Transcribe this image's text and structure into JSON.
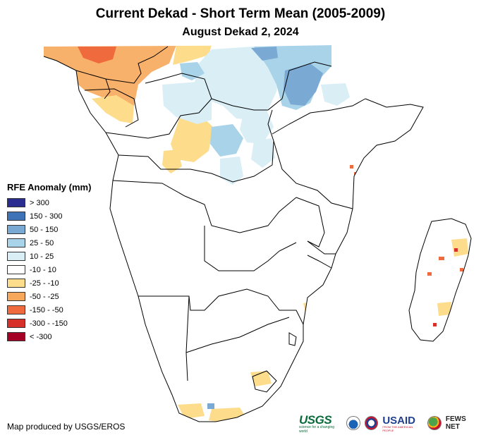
{
  "title": "Current Dekad - Short Term Mean (2005-2009)",
  "subtitle": "August Dekad 2, 2024",
  "legend": {
    "title": "RFE Anomaly (mm)",
    "items": [
      {
        "label": "> 300",
        "color": "#2b2c8f"
      },
      {
        "label": "150 - 300",
        "color": "#3f73b8"
      },
      {
        "label": "50 - 150",
        "color": "#7aa9d4"
      },
      {
        "label": "25 - 50",
        "color": "#a9d3e8"
      },
      {
        "label": "10 - 25",
        "color": "#daeef6"
      },
      {
        "label": "-10 - 10",
        "color": "#ffffff"
      },
      {
        "label": "-25 - -10",
        "color": "#fddc8c"
      },
      {
        "label": "-50 - -25",
        "color": "#f7a85b"
      },
      {
        "label": "-150 - -50",
        "color": "#ef6a3c"
      },
      {
        "label": "-300 - -150",
        "color": "#d7302a"
      },
      {
        "label": "< -300",
        "color": "#a50026"
      }
    ]
  },
  "credit": "Map produced by USGS/EROS",
  "logos": {
    "usgs": "USGS",
    "usgs_tagline": "science for a changing world",
    "usaid": "USAID",
    "usaid_tagline": "FROM THE AMERICAN PEOPLE",
    "fews": "FEWS NET"
  }
}
